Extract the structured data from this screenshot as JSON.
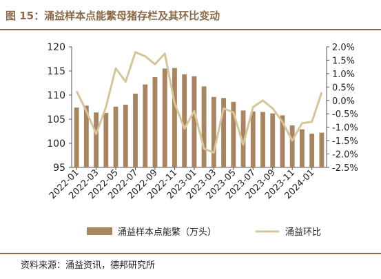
{
  "title": "图 15：涌益样本点能繁母猪存栏及其环比变动",
  "source": "资料来源：涌益资讯，德邦研究所",
  "colors": {
    "bar": "#A88461",
    "line": "#D6C59A",
    "accent": "#8B6A4A"
  },
  "chart_data": {
    "type": "bar+line",
    "title": "图 15：涌益样本点能繁母猪存栏及其环比变动",
    "x": [
      "2022-01",
      "2022-02",
      "2022-03",
      "2022-04",
      "2022-05",
      "2022-06",
      "2022-07",
      "2022-08",
      "2022-09",
      "2022-10",
      "2022-11",
      "2022-12",
      "2023-01",
      "2023-02",
      "2023-03",
      "2023-04",
      "2023-05",
      "2023-06",
      "2023-07",
      "2023-08",
      "2023-09",
      "2023-10",
      "2023-11",
      "2023-12",
      "2024-01",
      "2024-02"
    ],
    "x_tick_labels": [
      "2022-01",
      "2022-03",
      "2022-05",
      "2022-07",
      "2022-09",
      "2022-11",
      "2023-01",
      "2023-03",
      "2023-05",
      "2023-07",
      "2023-09",
      "2023-11",
      "2024-01"
    ],
    "series": [
      {
        "name": "涌益样本点能繁（万头）",
        "type": "bar",
        "axis": "left",
        "values": [
          107.4,
          107.8,
          106.4,
          106.3,
          107.6,
          108.0,
          110.3,
          112.2,
          113.7,
          115.5,
          115.6,
          114.3,
          113.9,
          111.8,
          109.6,
          109.4,
          108.6,
          106.8,
          106.6,
          106.5,
          106.2,
          105.8,
          103.7,
          102.9,
          102.0,
          102.2
        ]
      },
      {
        "name": "涌益环比",
        "type": "line",
        "axis": "right",
        "values": [
          0.35,
          -0.4,
          -1.25,
          -0.25,
          1.2,
          0.7,
          1.8,
          1.65,
          1.35,
          1.75,
          -0.1,
          -1.05,
          -0.4,
          -1.8,
          -1.95,
          -0.3,
          -0.45,
          -1.65,
          -0.25,
          0.0,
          -0.3,
          -0.8,
          -1.5,
          -0.85,
          -0.8,
          0.3
        ]
      }
    ],
    "y_left": {
      "ylim": [
        95,
        120
      ],
      "ticks": [
        95,
        100,
        105,
        110,
        115,
        120
      ]
    },
    "y_right": {
      "ylim": [
        -2.5,
        2.0
      ],
      "ticks": [
        "2.0%",
        "1.5%",
        "1.0%",
        "0.5%",
        "0.0%",
        "-0.5%",
        "-1.0%",
        "-1.5%",
        "-2.0%",
        "-2.5%"
      ]
    },
    "grid": false,
    "legend_position": "bottom"
  }
}
